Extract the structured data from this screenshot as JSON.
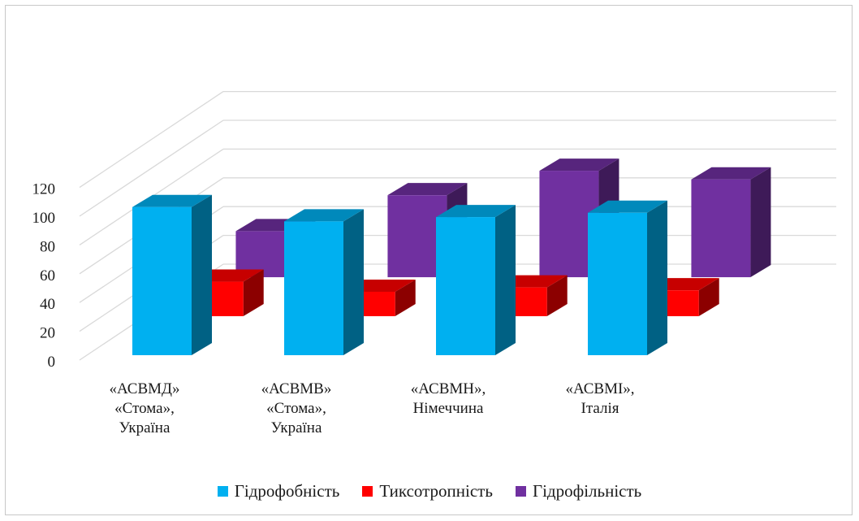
{
  "chart_data": {
    "type": "bar",
    "subtype": "3d-clustered-column",
    "title": "",
    "xlabel": "",
    "ylabel": "",
    "ylim": [
      0,
      120
    ],
    "yticks": [
      "0",
      "20",
      "40",
      "60",
      "80",
      "100",
      "120"
    ],
    "grid": true,
    "legend_position": "bottom",
    "categories": [
      [
        "«АСВМД»",
        "«Стома»,",
        "Україна"
      ],
      [
        "«АСВМВ»",
        "«Стома»,",
        "Україна"
      ],
      [
        "«АСВМН»,",
        "Німеччина"
      ],
      [
        "«АСВМІ»,",
        "Італія"
      ]
    ],
    "series": [
      {
        "name": "Гідрофобність",
        "values": [
          103,
          93,
          96,
          99
        ],
        "color": "#00b0f0"
      },
      {
        "name": "Тиксотропність",
        "values": [
          24,
          17,
          20,
          18
        ],
        "color": "#ff0000"
      },
      {
        "name": "Гідрофільність",
        "values": [
          32,
          57,
          74,
          68
        ],
        "color": "#7030a0"
      }
    ]
  }
}
